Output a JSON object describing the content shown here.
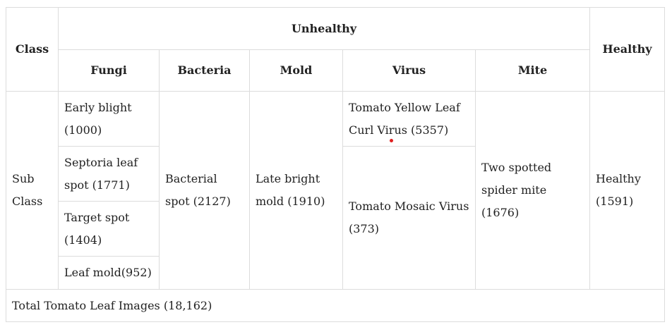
{
  "header": {
    "class": "Class",
    "unhealthy": "Unhealthy",
    "healthy": "Healthy",
    "fungi": "Fungi",
    "bacteria": "Bacteria",
    "mold": "Mold",
    "virus": "Virus",
    "mite": "Mite"
  },
  "subclass_label": "Sub Class",
  "fungi": [
    "Early blight (1000)",
    "Septoria leaf spot (1771)",
    "Target spot (1404)",
    "Leaf mold(952)"
  ],
  "bacteria": "Bacterial spot (2127)",
  "mold": "Late bright mold (1910)",
  "virus": [
    "Tomato Yellow Leaf Curl Virus (5357)",
    "Tomato Mosaic Virus (373)"
  ],
  "mite": "Two spotted spider mite (1676)",
  "healthy": "Healthy (1591)",
  "total": "Total Tomato Leaf Images (18,162)"
}
